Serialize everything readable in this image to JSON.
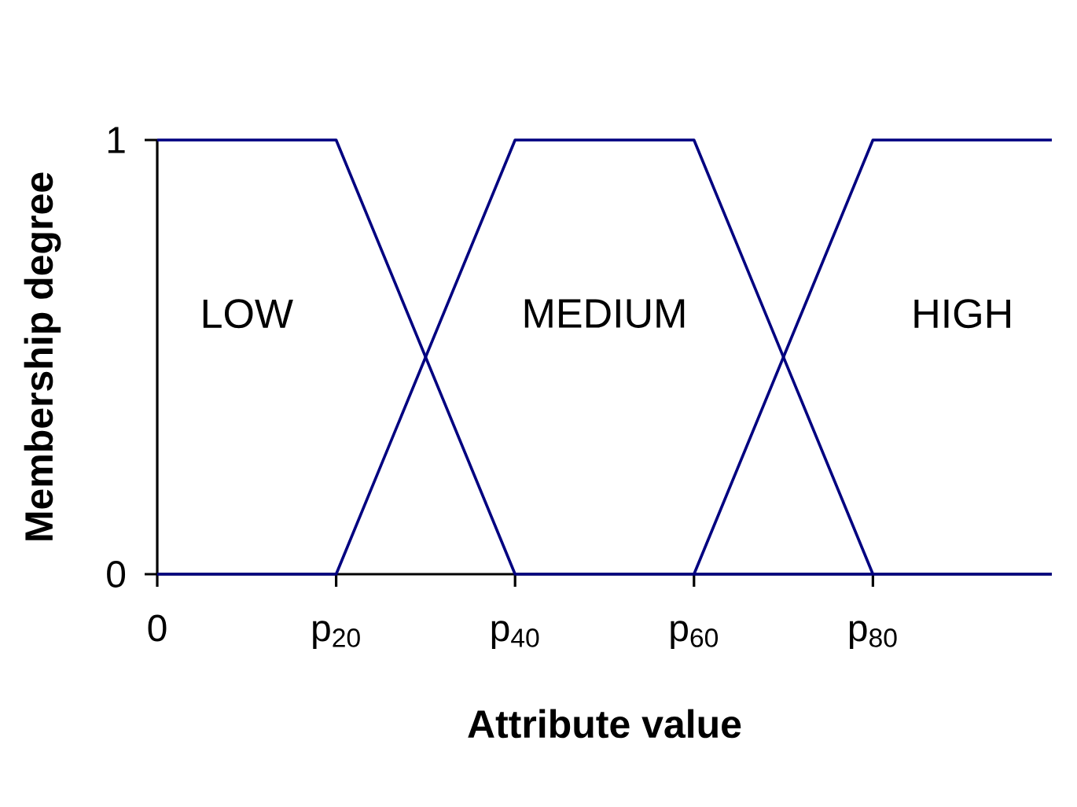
{
  "chart_data": {
    "type": "line",
    "xlabel": "Attribute value",
    "ylabel": "Membership degree",
    "categories": [
      "0",
      "p$_{20}$",
      "p$_{40}$",
      "p$_{60}$",
      "p$_{80}$",
      null
    ],
    "ylim": [
      0,
      1
    ],
    "yticks": [
      0,
      1
    ],
    "series": [
      {
        "name": "LOW",
        "color": "#000080",
        "values": [
          1,
          1,
          0,
          0,
          0,
          0
        ]
      },
      {
        "name": "MEDIUM",
        "color": "#000080",
        "values": [
          0,
          0,
          1,
          1,
          0,
          null
        ]
      },
      {
        "name": "HIGH",
        "color": "#000080",
        "values": [
          null,
          null,
          null,
          0,
          1,
          1
        ]
      }
    ]
  }
}
